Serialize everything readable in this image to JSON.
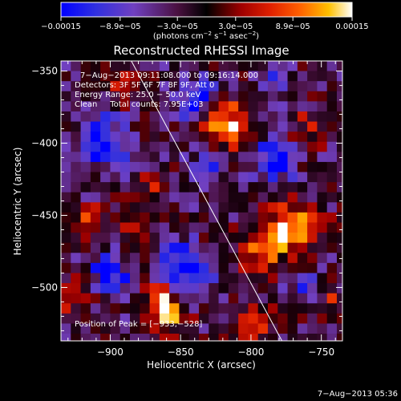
{
  "chart_data": {
    "type": "heatmap",
    "title": "Reconstructed RHESSI Image",
    "xlabel": "Heliocentric X (arcsec)",
    "ylabel": "Heliocentric Y (arcsec)",
    "xlim": [
      -935,
      -735
    ],
    "ylim": [
      -537,
      -343
    ],
    "x_ticks": [
      -900,
      -850,
      -800,
      -750
    ],
    "x_tick_labels": [
      "−900",
      "−850",
      "−800",
      "−750"
    ],
    "y_ticks": [
      -350,
      -400,
      -450,
      -500
    ],
    "y_tick_labels": [
      "−350",
      "−400",
      "−450",
      "−500"
    ],
    "colorbar": {
      "range": [
        -0.00015,
        0.00015
      ],
      "ticks": [
        -0.00015,
        -8.9e-05,
        -3e-05,
        3e-05,
        8.9e-05,
        0.00015
      ],
      "tick_labels": [
        "−0.00015",
        "−8.9e−05",
        "−3.0e−05",
        "3.0e−05",
        "8.9e−05",
        "0.00015"
      ],
      "label_prefix": "(photons cm",
      "label_exp1": "−2",
      "label_mid": " s",
      "label_exp2": "−1",
      "label_mid2": " asec",
      "label_exp3": "−2",
      "label_suffix": ")"
    },
    "annotations": {
      "time_range": "7−Aug−2013 09:11:08.000 to 09:16:14.000",
      "detectors": "Detectors: 3F 5F 6F 7F 8F 9F, Att 0",
      "energy": "Energy Range: 25.0 − 50.0 keV",
      "clean": "Clean     Total counts: 7.95E+03",
      "peak": "Position of Peak = [−933,−528]"
    },
    "limb_line": {
      "x": [
        -885,
        -778
      ],
      "y": [
        -343,
        -537
      ]
    },
    "hotspots": [
      {
        "x": -817,
        "y": -388,
        "intensity": 1.0,
        "spread": 12
      },
      {
        "x": -772,
        "y": -460,
        "intensity": 1.0,
        "spread": 13
      },
      {
        "x": -795,
        "y": -475,
        "intensity": 0.6,
        "spread": 10
      },
      {
        "x": -800,
        "y": -525,
        "intensity": 0.85,
        "spread": 9
      },
      {
        "x": -863,
        "y": -510,
        "intensity": 0.75,
        "spread": 9
      },
      {
        "x": -858,
        "y": -520,
        "intensity": 0.7,
        "spread": 8
      },
      {
        "x": -925,
        "y": -505,
        "intensity": 0.7,
        "spread": 8
      },
      {
        "x": -880,
        "y": -465,
        "intensity": 0.5,
        "spread": 9
      },
      {
        "x": -915,
        "y": -455,
        "intensity": 0.55,
        "spread": 8
      },
      {
        "x": -870,
        "y": -430,
        "intensity": 0.45,
        "spread": 8
      },
      {
        "x": -758,
        "y": -390,
        "intensity": 0.4,
        "spread": 9
      },
      {
        "x": -745,
        "y": -508,
        "intensity": 0.5,
        "spread": 8
      },
      {
        "x": -830,
        "y": -470,
        "intensity": 0.45,
        "spread": 8
      },
      {
        "x": -893,
        "y": -362,
        "intensity": 0.35,
        "spread": 8
      }
    ],
    "coldspots": [
      {
        "x": -905,
        "y": -400,
        "intensity": -1.0,
        "spread": 12
      },
      {
        "x": -840,
        "y": -370,
        "intensity": -0.9,
        "spread": 10
      },
      {
        "x": -845,
        "y": -485,
        "intensity": -1.0,
        "spread": 13
      },
      {
        "x": -900,
        "y": -490,
        "intensity": -0.9,
        "spread": 10
      },
      {
        "x": -785,
        "y": -412,
        "intensity": -0.8,
        "spread": 11
      },
      {
        "x": -760,
        "y": -500,
        "intensity": -0.6,
        "spread": 9
      },
      {
        "x": -830,
        "y": -415,
        "intensity": -0.6,
        "spread": 9
      },
      {
        "x": -785,
        "y": -360,
        "intensity": -0.5,
        "spread": 9
      }
    ]
  },
  "footer": {
    "timestamp": "7−Aug−2013 05:36"
  },
  "colors": {
    "background": "#000000",
    "text": "#ffffff"
  }
}
